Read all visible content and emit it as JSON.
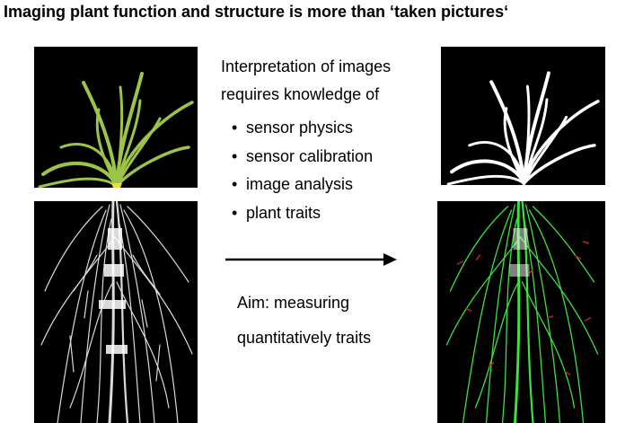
{
  "title": "Imaging plant function and structure is more than ‘taken pictures‘",
  "intro": {
    "line1": "Interpretation of images",
    "line2": "requires knowledge of"
  },
  "bullets": [
    "sensor physics",
    "sensor calibration",
    "image analysis",
    "plant traits"
  ],
  "bullet_symbol": "•",
  "aim": {
    "line1": "Aim: measuring",
    "line2": "quantitatively traits"
  },
  "colors": {
    "background": "#ffffff",
    "panel": "#000000",
    "leaf": "#9cc449",
    "leaf_binary": "#ffffff",
    "root": "#e6e6e6",
    "root_traced": "#3ee03e",
    "root_marked": "#c0201e"
  }
}
